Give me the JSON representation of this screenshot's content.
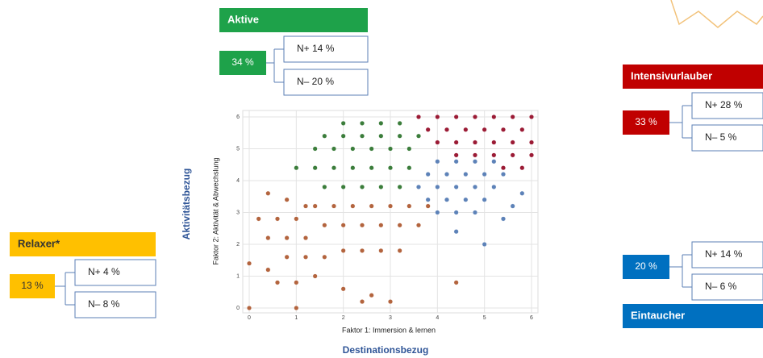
{
  "segments": [
    {
      "header": "Aktive",
      "share": "34 %",
      "nplus": "N+ 14 %",
      "nminus": "N– 20 %",
      "color": "#1ea24a",
      "text_color": "#ffffff"
    },
    {
      "header": "Intensivurlauber",
      "share": "33 %",
      "nplus": "N+ 28 %",
      "nminus": "N– 5 %",
      "color": "#c00000",
      "text_color": "#ffffff"
    },
    {
      "header": "Relaxer*",
      "share": "13 %",
      "nplus": "N+ 4 %",
      "nminus": "N– 8 %",
      "color": "#ffc000",
      "text_color": "#333333"
    },
    {
      "header": "Eintaucher",
      "share": "20 %",
      "nplus": "N+ 14 %",
      "nminus": "N– 6 %",
      "color": "#0070c0",
      "text_color": "#ffffff"
    }
  ],
  "y_title": "Aktivitätsbezug",
  "x_title": "Destinationsbezug",
  "chart_data": {
    "type": "scatter",
    "x_label": "Faktor 1: Immersion & lernen",
    "y_label": "Faktor 2: Aktivität & Abwechslung",
    "xlim": [
      0,
      6
    ],
    "ylim": [
      0,
      6
    ],
    "xticks": [
      0,
      1,
      2,
      3,
      4,
      5,
      6
    ],
    "yticks": [
      0,
      1,
      2,
      3,
      4,
      5,
      6
    ],
    "grid": true,
    "series": [
      {
        "color": "#9b1b35",
        "x": [
          3.6,
          4,
          4.4,
          4.8,
          5.2,
          5.6,
          6,
          3.8,
          4.2,
          4.6,
          5,
          5.4,
          5.8,
          4,
          4.4,
          4.8,
          5.2,
          5.6,
          6,
          4.4,
          4.8,
          5.2,
          5.6,
          6,
          5.4,
          5.8
        ],
        "y": [
          6,
          6,
          6,
          6,
          6,
          6,
          6,
          5.6,
          5.6,
          5.6,
          5.6,
          5.6,
          5.6,
          5.2,
          5.2,
          5.2,
          5.2,
          5.2,
          5.2,
          4.8,
          4.8,
          4.8,
          4.8,
          4.8,
          4.4,
          4.4
        ]
      },
      {
        "color": "#3b7d3b",
        "x": [
          2,
          2.4,
          2.8,
          3.2,
          1.6,
          2,
          2.4,
          2.8,
          3.2,
          3.6,
          1.4,
          1.8,
          2.2,
          2.6,
          3,
          3.4,
          1,
          1.4,
          1.8,
          2.2,
          2.6,
          3,
          3.4,
          1.6,
          2,
          2.4,
          2.8,
          3.2
        ],
        "y": [
          5.8,
          5.8,
          5.8,
          5.8,
          5.4,
          5.4,
          5.4,
          5.4,
          5.4,
          5.4,
          5,
          5,
          5,
          5,
          5,
          5,
          4.4,
          4.4,
          4.4,
          4.4,
          4.4,
          4.4,
          4.4,
          3.8,
          3.8,
          3.8,
          3.8,
          3.8
        ]
      },
      {
        "color": "#5d82b8",
        "x": [
          4,
          4.4,
          4.8,
          5.2,
          3.8,
          4.2,
          4.6,
          5,
          5.4,
          5.8,
          3.6,
          4,
          4.4,
          4.8,
          5.2,
          5.6,
          3.8,
          4.2,
          4.6,
          5,
          5.4,
          4,
          4.4,
          4.8,
          4.4,
          5
        ],
        "y": [
          4.6,
          4.6,
          4.6,
          4.6,
          4.2,
          4.2,
          4.2,
          4.2,
          4.2,
          3.6,
          3.8,
          3.8,
          3.8,
          3.8,
          3.8,
          3.2,
          3.4,
          3.4,
          3.4,
          3.4,
          2.8,
          3,
          3,
          3,
          2.4,
          2
        ]
      },
      {
        "color": "#b3643e",
        "x": [
          0.4,
          0.8,
          1.2,
          0.2,
          0.6,
          1,
          1.4,
          1.8,
          2.2,
          2.6,
          3,
          3.4,
          3.8,
          0,
          0.4,
          0.8,
          1.2,
          1.6,
          2,
          2.4,
          2.8,
          3.2,
          3.6,
          0.4,
          0.8,
          1.2,
          1.6,
          2,
          2.4,
          2.8,
          3.2,
          0.6,
          1,
          1.4,
          2,
          2.6,
          0,
          1,
          2.4,
          3,
          4.4
        ],
        "y": [
          3.6,
          3.4,
          3.2,
          2.8,
          2.8,
          2.8,
          3.2,
          3.2,
          3.2,
          3.2,
          3.2,
          3.2,
          3.2,
          1.4,
          2.2,
          2.2,
          2.2,
          2.6,
          2.6,
          2.6,
          2.6,
          2.6,
          2.6,
          1.2,
          1.6,
          1.6,
          1.6,
          1.8,
          1.8,
          1.8,
          1.8,
          0.8,
          0.8,
          1,
          0.6,
          0.4,
          0,
          0,
          0.2,
          0.2,
          0.8
        ]
      }
    ]
  }
}
